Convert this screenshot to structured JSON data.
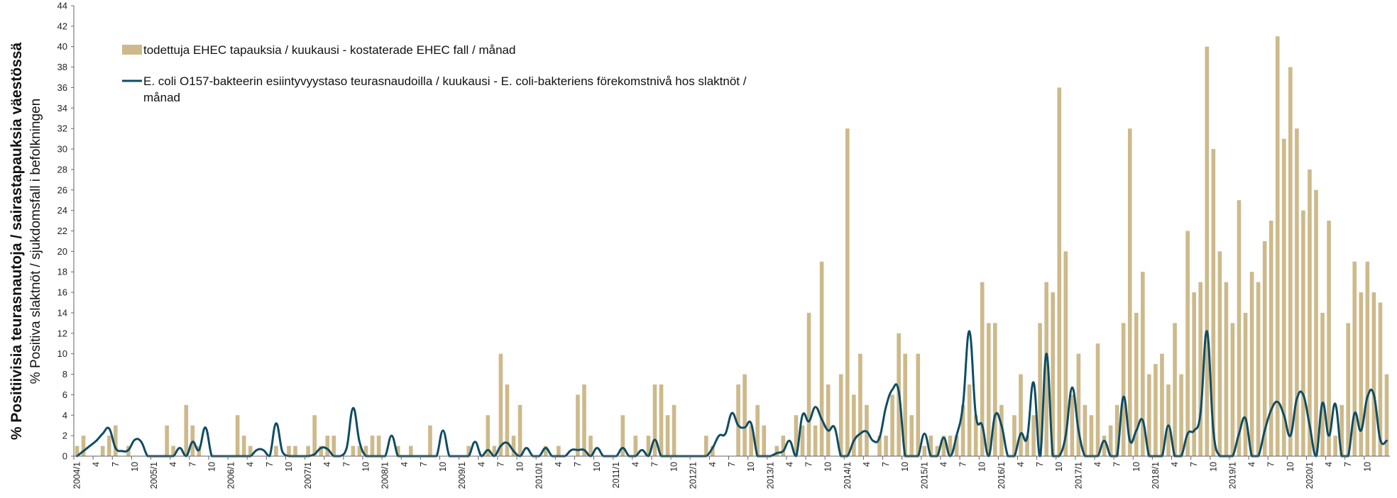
{
  "chart_data": {
    "type": "bar",
    "title": "",
    "ylabel_primary": "% Positiivisia teurasnautoja / sairastapauksia väestössä",
    "ylabel_secondary": "% Positiva slaktnöt / sjukdomsfall i befolkningen",
    "ylim": [
      0,
      44
    ],
    "y_ticks": [
      0,
      2,
      4,
      6,
      8,
      10,
      12,
      14,
      16,
      18,
      20,
      22,
      24,
      26,
      28,
      30,
      32,
      34,
      36,
      38,
      40,
      42,
      44
    ],
    "grid": false,
    "legend_placement": "top-left",
    "colors": {
      "bars": "#cdb98a",
      "line": "#0e4d64",
      "axis": "#666666"
    },
    "x_start": "2004/1",
    "x_ticks": [
      "2004/1",
      "4",
      "7",
      "10",
      "2005/1",
      "4",
      "7",
      "10",
      "2006/1",
      "4",
      "7",
      "10",
      "2007/1",
      "4",
      "7",
      "10",
      "2008/1",
      "4",
      "7",
      "10",
      "2009/1",
      "4",
      "7",
      "10",
      "2010/1",
      "4",
      "7",
      "10",
      "2011/1",
      "4",
      "7",
      "10",
      "2012/1",
      "4",
      "7",
      "10",
      "2013/1",
      "4",
      "7",
      "10",
      "2014/1",
      "4",
      "7",
      "10",
      "2015/1",
      "4",
      "7",
      "10",
      "2016/1",
      "4",
      "7",
      "10",
      "2017/1",
      "4",
      "7",
      "10",
      "2018/1",
      "4",
      "7",
      "10",
      "2019/1",
      "4",
      "7",
      "10",
      "2020/1",
      "4",
      "7",
      "10"
    ],
    "series": [
      {
        "name": "todettuja EHEC tapauksia / kuukausi - kostaterade EHEC fall / månad",
        "type": "bar",
        "values": [
          1,
          2,
          0,
          0,
          1,
          2,
          3,
          0,
          1,
          0,
          0,
          0,
          0,
          0,
          3,
          1,
          0,
          5,
          3,
          1,
          0,
          0,
          0,
          0,
          0,
          4,
          2,
          1,
          0,
          0,
          0,
          1,
          0,
          1,
          1,
          0,
          1,
          4,
          1,
          2,
          2,
          0,
          0,
          1,
          1,
          1,
          2,
          2,
          0,
          0,
          1,
          0,
          1,
          0,
          0,
          3,
          0,
          0,
          0,
          0,
          0,
          1,
          0,
          0,
          4,
          1,
          10,
          7,
          2,
          5,
          0,
          0,
          0,
          1,
          0,
          1,
          0,
          0,
          6,
          7,
          2,
          0,
          0,
          0,
          0,
          4,
          0,
          2,
          0,
          2,
          7,
          7,
          4,
          5,
          0,
          0,
          0,
          0,
          2,
          1,
          0,
          0,
          0,
          7,
          8,
          3,
          5,
          3,
          0,
          1,
          2,
          0,
          4,
          3,
          14,
          3,
          19,
          7,
          0,
          8,
          32,
          6,
          10,
          5,
          0,
          2,
          2,
          6,
          12,
          10,
          4,
          10,
          1,
          2,
          1,
          2,
          2,
          2,
          5,
          7,
          4,
          17,
          13,
          13,
          5,
          0,
          4,
          8,
          2,
          4,
          13,
          17,
          16,
          36,
          20,
          6,
          10,
          5,
          4,
          11,
          2,
          3,
          5,
          13,
          32,
          14,
          18,
          8,
          9,
          10,
          7,
          13,
          8,
          22,
          16,
          17,
          40,
          30,
          20,
          17,
          13,
          25,
          14,
          18,
          17,
          21,
          23,
          41,
          31,
          38,
          32,
          24,
          28,
          26,
          14,
          23,
          2,
          5,
          13,
          19,
          16,
          19,
          16,
          15,
          8
        ]
      },
      {
        "name": "E. coli O157-bakteerin esiintyvyystaso teurasnaudoilla / kuukausi - E. coli-bakteriens förekomstnivå hos slaktnöt / månad",
        "type": "line",
        "values": [
          0,
          0.5,
          1,
          1.5,
          2.2,
          2.7,
          0.8,
          0.5,
          0.6,
          1.6,
          1.4,
          0,
          0,
          0,
          0,
          0,
          0.8,
          0,
          1.4,
          0.6,
          2.8,
          0,
          0,
          0,
          0,
          0,
          0,
          0,
          0.6,
          0.6,
          0,
          3.2,
          0.4,
          0,
          0,
          0,
          0,
          0.2,
          0.8,
          0.7,
          0,
          0,
          0.8,
          4.7,
          1.4,
          0,
          0,
          0,
          0,
          2,
          0,
          0,
          0,
          0,
          0,
          0,
          0,
          2.5,
          0,
          0,
          0,
          0,
          1.4,
          0,
          0.6,
          0,
          1,
          1.3,
          0.5,
          0,
          0.8,
          0,
          0,
          0.8,
          0,
          0,
          0,
          0.6,
          0.6,
          0.6,
          0,
          0.8,
          0,
          0,
          0,
          0.8,
          0,
          0,
          0.6,
          0,
          1.6,
          0,
          0,
          0,
          0,
          0,
          0,
          0,
          0,
          0.8,
          2,
          2.2,
          4.2,
          3,
          2.8,
          3.2,
          0,
          0,
          0,
          0.3,
          0.5,
          1.5,
          0,
          4,
          3.4,
          4.8,
          3.6,
          2.5,
          2.8,
          0,
          0,
          1.5,
          2.2,
          2.4,
          1.5,
          1.8,
          4.8,
          6.5,
          6.3,
          0,
          0,
          0,
          2.2,
          0,
          0,
          1.8,
          0,
          2,
          5,
          12.2,
          4,
          3,
          0,
          4,
          3,
          0,
          0,
          2.2,
          1.8,
          7.2,
          0,
          10,
          0,
          0,
          2,
          6.7,
          2.5,
          0,
          0,
          0,
          1.5,
          0,
          0,
          5.8,
          1.5,
          2.5,
          3.5,
          0,
          0,
          0,
          3,
          0,
          0,
          2.2,
          2.5,
          4.2,
          12.2,
          2.5,
          0,
          0,
          0,
          2.2,
          3.7,
          0,
          0,
          2.5,
          4.5,
          5.3,
          4,
          2,
          5.6,
          6,
          3,
          0,
          5.2,
          2,
          5.1,
          0,
          0,
          4.2,
          2.5,
          5.8,
          6,
          1.6,
          1.5
        ]
      }
    ]
  }
}
